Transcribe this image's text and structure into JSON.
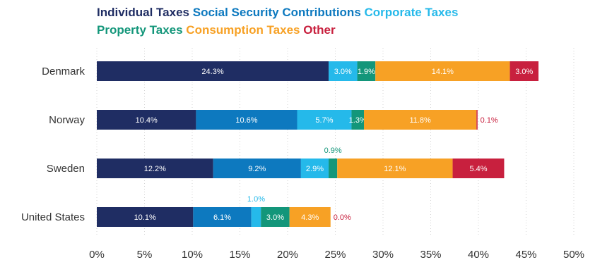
{
  "chart_data": {
    "type": "bar",
    "orientation": "horizontal",
    "stacked": true,
    "categories": [
      "Denmark",
      "Norway",
      "Sweden",
      "United States"
    ],
    "series": [
      {
        "name": "Individual Taxes",
        "color": "#1f2d63",
        "values": [
          24.3,
          10.4,
          12.2,
          10.1
        ],
        "labels": [
          "24.3%",
          "10.4%",
          "12.2%",
          "10.1%"
        ]
      },
      {
        "name": "Social Security Contributions",
        "color": "#0d79bf",
        "values": [
          0.0,
          10.6,
          9.2,
          6.1
        ],
        "labels": [
          "",
          "10.6%",
          "9.2%",
          "6.1%"
        ]
      },
      {
        "name": "Corporate Taxes",
        "color": "#25b9ea",
        "values": [
          3.0,
          5.7,
          2.9,
          1.0
        ],
        "labels": [
          "3.0%",
          "5.7%",
          "2.9%",
          "1.0%"
        ]
      },
      {
        "name": "Property Taxes",
        "color": "#13967a",
        "values": [
          1.9,
          1.3,
          0.9,
          3.0
        ],
        "labels": [
          "1.9%",
          "1.3%",
          "0.9%",
          "3.0%"
        ]
      },
      {
        "name": "Consumption Taxes",
        "color": "#f7a125",
        "values": [
          14.1,
          11.8,
          12.1,
          4.3
        ],
        "labels": [
          "14.1%",
          "11.8%",
          "12.1%",
          "4.3%"
        ]
      },
      {
        "name": "Other",
        "color": "#c8203e",
        "values": [
          3.0,
          0.1,
          5.4,
          0.0
        ],
        "labels": [
          "3.0%",
          "0.1%",
          "5.4%",
          "0.0%"
        ]
      }
    ],
    "xlim": [
      0,
      50
    ],
    "xticks": [
      "0%",
      "5%",
      "10%",
      "15%",
      "20%",
      "25%",
      "30%",
      "35%",
      "40%",
      "45%",
      "50%"
    ],
    "legend": "top",
    "grid": true
  }
}
